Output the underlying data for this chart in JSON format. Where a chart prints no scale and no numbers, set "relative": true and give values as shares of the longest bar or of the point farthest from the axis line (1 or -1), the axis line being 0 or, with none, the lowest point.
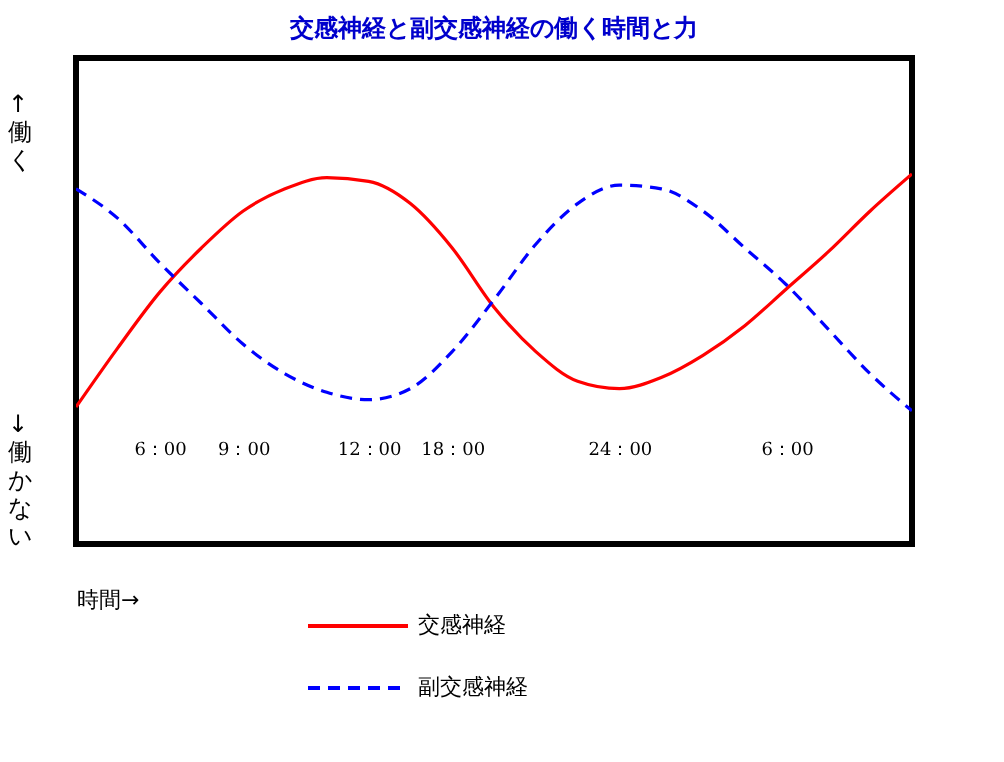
{
  "chart_data": {
    "type": "line",
    "title": "交感神経と副交感神経の働く時間と力",
    "xlabel": "時間→",
    "ylabel": "↑働く",
    "annotations": [
      "↓働かない"
    ],
    "relative": true,
    "categories": [
      null,
      null,
      "6：00",
      null,
      "9：00",
      null,
      null,
      "12：00",
      null,
      "18：00",
      null,
      null,
      null,
      "24：00",
      null,
      null,
      null,
      "6：00",
      null,
      null,
      null
    ],
    "series": [
      {
        "name": "交感神経",
        "color": "#ff0000",
        "line_style": "solid",
        "values": [
          0.37,
          0.53,
          0.68,
          0.8,
          0.9,
          0.96,
          0.99,
          0.98,
          0.92,
          0.8,
          0.64,
          0.52,
          0.44,
          0.42,
          0.45,
          0.51,
          0.59,
          0.69,
          0.79,
          0.9,
          1
        ]
      },
      {
        "name": "副交感神経",
        "color": "#0000ff",
        "line_style": "dashed",
        "values": [
          0.96,
          0.88,
          0.76,
          0.65,
          0.54,
          0.46,
          0.41,
          0.39,
          0.42,
          0.52,
          0.66,
          0.81,
          0.92,
          0.97,
          0.96,
          0.9,
          0.8,
          0.7,
          0.58,
          0.46,
          0.36
        ]
      }
    ],
    "grid": false,
    "legend": "bottom"
  }
}
